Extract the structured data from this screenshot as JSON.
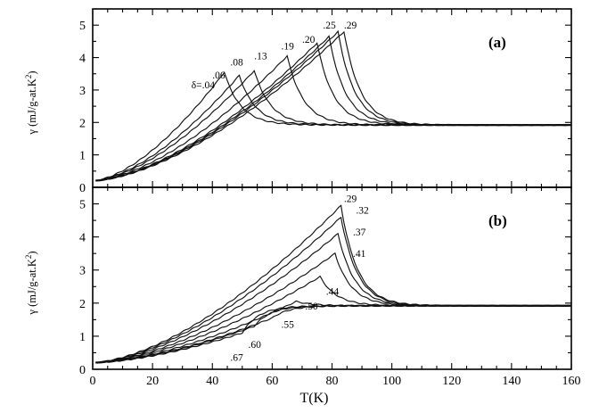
{
  "chart_data": [
    {
      "type": "line",
      "panel_label": "(a)",
      "ylabel": "γ (mJ/g-at.K²)",
      "ylabel_text": "γ  (mJ/g-at.K",
      "ylabel_sup": "2",
      "ylabel_close": ")",
      "xlim": [
        0,
        160
      ],
      "ylim": [
        0,
        5.5
      ],
      "y_ticks": [
        "0",
        "1",
        "2",
        "3",
        "4",
        "5"
      ],
      "series": [
        {
          "label": "δ=.04",
          "peak_T": 44,
          "peak_gamma": 3.55,
          "label_T": 33,
          "label_gamma": 3.05
        },
        {
          "label": ".06",
          "peak_T": 49,
          "peak_gamma": 3.45,
          "label_T": 40,
          "label_gamma": 3.35
        },
        {
          "label": ".08",
          "peak_T": 54,
          "peak_gamma": 3.6,
          "label_T": 46,
          "label_gamma": 3.75
        },
        {
          "label": ".13",
          "peak_T": 65,
          "peak_gamma": 4.05,
          "label_T": 54,
          "label_gamma": 3.95
        },
        {
          "label": ".19",
          "peak_T": 75,
          "peak_gamma": 4.45,
          "label_T": 63,
          "label_gamma": 4.25
        },
        {
          "label": ".20",
          "peak_T": 79,
          "peak_gamma": 4.65,
          "label_T": 70,
          "label_gamma": 4.45
        },
        {
          "label": ".25",
          "peak_T": 82,
          "peak_gamma": 4.8,
          "label_T": 77,
          "label_gamma": 4.9
        },
        {
          "label": ".29",
          "peak_T": 84,
          "peak_gamma": 4.8,
          "label_T": 84,
          "label_gamma": 4.9
        }
      ]
    },
    {
      "type": "line",
      "panel_label": "(b)",
      "ylabel": "γ (mJ/g-at.K²)",
      "ylabel_text": "γ  (mJ/g-at.K",
      "ylabel_sup": "2",
      "ylabel_close": ")",
      "xlabel": "T(K)",
      "xlim": [
        0,
        160
      ],
      "ylim": [
        0,
        5.5
      ],
      "x_ticks": [
        "0",
        "20",
        "40",
        "60",
        "80",
        "100",
        "120",
        "140",
        "160"
      ],
      "y_ticks": [
        "0",
        "1",
        "2",
        "3",
        "4",
        "5"
      ],
      "series": [
        {
          "label": ".29",
          "peak_T": 83,
          "peak_gamma": 4.95,
          "label_T": 84,
          "label_gamma": 5.05
        },
        {
          "label": ".32",
          "peak_T": 83,
          "peak_gamma": 4.6,
          "label_T": 88,
          "label_gamma": 4.7
        },
        {
          "label": ".37",
          "peak_T": 82,
          "peak_gamma": 4.1,
          "label_T": 87,
          "label_gamma": 4.05
        },
        {
          "label": ".41",
          "peak_T": 81,
          "peak_gamma": 3.5,
          "label_T": 87,
          "label_gamma": 3.4
        },
        {
          "label": ".44",
          "peak_T": 76,
          "peak_gamma": 2.8,
          "label_T": 78,
          "label_gamma": 2.25
        },
        {
          "label": ".50",
          "peak_T": 68,
          "peak_gamma": 2.05,
          "label_T": 71,
          "label_gamma": 1.8
        },
        {
          "label": ".55",
          "peak_T": 60,
          "peak_gamma": 1.55,
          "label_T": 63,
          "label_gamma": 1.25
        },
        {
          "label": ".60",
          "peak_T": 54,
          "peak_gamma": 1.3,
          "label_T": 52,
          "label_gamma": 0.65
        },
        {
          "label": ".67",
          "peak_T": 50,
          "peak_gamma": 1.1,
          "label_T": 46,
          "label_gamma": 0.25
        }
      ]
    }
  ]
}
